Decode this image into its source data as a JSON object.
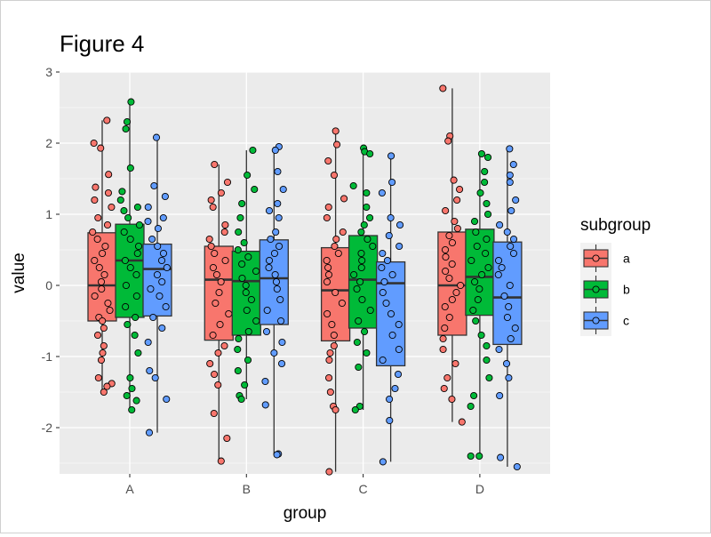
{
  "chart_data": {
    "type": "boxplot",
    "title": "Figure 4",
    "xlabel": "group",
    "ylabel": "value",
    "categories": [
      "A",
      "B",
      "C",
      "D"
    ],
    "ylim": [
      -2.65,
      3.0
    ],
    "yticks": [
      -2,
      -1,
      0,
      1,
      2,
      3
    ],
    "grid": true,
    "legend": {
      "title": "subgroup",
      "position": "right"
    },
    "series": [
      {
        "name": "a",
        "color": "#F8766D"
      },
      {
        "name": "b",
        "color": "#00BA38"
      },
      {
        "name": "c",
        "color": "#619CFF"
      }
    ],
    "boxes": [
      {
        "group": "A",
        "subgroup": "a",
        "min": -1.5,
        "q1": -0.5,
        "median": 0.0,
        "q3": 0.74,
        "max": 2.32,
        "points": [
          2.32,
          2.0,
          1.93,
          1.56,
          1.38,
          1.3,
          1.2,
          1.1,
          0.95,
          0.85,
          0.75,
          0.65,
          0.55,
          0.45,
          0.35,
          0.25,
          0.15,
          0.05,
          -0.05,
          -0.15,
          -0.25,
          -0.35,
          -0.45,
          -0.5,
          -0.6,
          -0.7,
          -0.85,
          -0.95,
          -1.05,
          -1.3,
          -1.38,
          -1.42,
          -1.5
        ]
      },
      {
        "group": "A",
        "subgroup": "b",
        "min": -1.75,
        "q1": -0.45,
        "median": 0.35,
        "q3": 0.86,
        "max": 2.58,
        "points": [
          2.58,
          2.3,
          2.2,
          1.65,
          1.32,
          1.2,
          1.1,
          1.05,
          0.95,
          0.85,
          0.75,
          0.65,
          0.55,
          0.45,
          0.35,
          0.25,
          0.15,
          0.0,
          -0.15,
          -0.3,
          -0.45,
          -0.55,
          -0.7,
          -0.95,
          -1.3,
          -1.45,
          -1.55,
          -1.62,
          -1.75
        ]
      },
      {
        "group": "A",
        "subgroup": "c",
        "min": -2.07,
        "q1": -0.43,
        "median": 0.23,
        "q3": 0.58,
        "max": 2.08,
        "points": [
          2.08,
          1.4,
          1.25,
          1.1,
          0.95,
          0.9,
          0.8,
          0.65,
          0.55,
          0.45,
          0.35,
          0.25,
          0.15,
          0.05,
          -0.05,
          -0.15,
          -0.3,
          -0.45,
          -0.6,
          -0.8,
          -1.2,
          -1.3,
          -1.6,
          -2.07
        ]
      },
      {
        "group": "B",
        "subgroup": "a",
        "min": -2.47,
        "q1": -0.77,
        "median": 0.08,
        "q3": 0.55,
        "max": 1.7,
        "points": [
          1.7,
          1.45,
          1.3,
          1.2,
          1.1,
          0.85,
          0.75,
          0.65,
          0.55,
          0.45,
          0.35,
          0.25,
          0.15,
          0.05,
          -0.1,
          -0.25,
          -0.4,
          -0.55,
          -0.7,
          -0.85,
          -0.95,
          -1.1,
          -1.25,
          -1.4,
          -1.8,
          -2.15,
          -2.47
        ]
      },
      {
        "group": "B",
        "subgroup": "b",
        "min": -1.6,
        "q1": -0.7,
        "median": 0.06,
        "q3": 0.48,
        "max": 1.9,
        "points": [
          1.9,
          1.55,
          1.35,
          1.15,
          0.95,
          0.75,
          0.6,
          0.5,
          0.4,
          0.3,
          0.2,
          0.1,
          0.0,
          -0.1,
          -0.2,
          -0.35,
          -0.5,
          -0.65,
          -0.75,
          -0.9,
          -1.05,
          -1.2,
          -1.4,
          -1.55,
          -1.6
        ]
      },
      {
        "group": "B",
        "subgroup": "c",
        "min": -2.38,
        "q1": -0.55,
        "median": 0.1,
        "q3": 0.64,
        "max": 1.95,
        "points": [
          1.95,
          1.9,
          1.6,
          1.35,
          1.15,
          1.05,
          0.95,
          0.75,
          0.65,
          0.55,
          0.45,
          0.35,
          0.25,
          0.15,
          0.05,
          -0.05,
          -0.2,
          -0.35,
          -0.5,
          -0.65,
          -0.8,
          -0.95,
          -1.1,
          -1.35,
          -1.68,
          -2.37,
          -2.38
        ]
      },
      {
        "group": "C",
        "subgroup": "a",
        "min": -2.62,
        "q1": -0.78,
        "median": -0.07,
        "q3": 0.53,
        "max": 2.17,
        "points": [
          2.17,
          1.98,
          1.75,
          1.55,
          1.22,
          1.1,
          0.95,
          0.75,
          0.65,
          0.55,
          0.45,
          0.35,
          0.25,
          0.15,
          0.05,
          -0.1,
          -0.25,
          -0.4,
          -0.55,
          -0.7,
          -0.85,
          -0.95,
          -1.05,
          -1.3,
          -1.5,
          -1.7,
          -1.75,
          -2.62
        ]
      },
      {
        "group": "C",
        "subgroup": "b",
        "min": -1.75,
        "q1": -0.6,
        "median": 0.08,
        "q3": 0.7,
        "max": 1.93,
        "points": [
          1.93,
          1.88,
          1.85,
          1.4,
          1.3,
          1.1,
          0.95,
          0.85,
          0.75,
          0.65,
          0.55,
          0.45,
          0.35,
          0.25,
          0.15,
          0.05,
          -0.05,
          -0.2,
          -0.35,
          -0.5,
          -0.65,
          -0.8,
          -0.95,
          -1.15,
          -1.7,
          -1.75
        ]
      },
      {
        "group": "C",
        "subgroup": "c",
        "min": -2.48,
        "q1": -1.13,
        "median": 0.03,
        "q3": 0.33,
        "max": 1.82,
        "points": [
          1.82,
          1.45,
          1.3,
          0.95,
          0.85,
          0.7,
          0.55,
          0.45,
          0.35,
          0.25,
          0.15,
          0.05,
          -0.1,
          -0.25,
          -0.4,
          -0.55,
          -0.7,
          -0.9,
          -1.05,
          -1.25,
          -1.45,
          -1.6,
          -1.9,
          -2.48
        ]
      },
      {
        "group": "D",
        "subgroup": "a",
        "min": -1.92,
        "q1": -0.7,
        "median": 0.0,
        "q3": 0.75,
        "max": 2.77,
        "points": [
          2.77,
          2.1,
          2.03,
          1.48,
          1.35,
          1.2,
          1.05,
          0.9,
          0.8,
          0.7,
          0.6,
          0.5,
          0.4,
          0.3,
          0.2,
          0.1,
          0.0,
          -0.1,
          -0.2,
          -0.3,
          -0.45,
          -0.6,
          -0.75,
          -0.9,
          -1.1,
          -1.3,
          -1.45,
          -1.6,
          -1.92
        ]
      },
      {
        "group": "D",
        "subgroup": "b",
        "min": -2.4,
        "q1": -0.42,
        "median": 0.12,
        "q3": 0.79,
        "max": 1.85,
        "points": [
          1.85,
          1.8,
          1.6,
          1.45,
          1.3,
          1.15,
          1.0,
          0.9,
          0.75,
          0.65,
          0.55,
          0.45,
          0.35,
          0.25,
          0.15,
          0.05,
          -0.05,
          -0.2,
          -0.35,
          -0.5,
          -0.7,
          -0.85,
          -1.05,
          -1.3,
          -1.55,
          -1.7,
          -2.4,
          -2.4
        ]
      },
      {
        "group": "D",
        "subgroup": "c",
        "min": -2.55,
        "q1": -0.83,
        "median": -0.17,
        "q3": 0.61,
        "max": 1.92,
        "points": [
          1.92,
          1.7,
          1.55,
          1.45,
          1.2,
          1.05,
          0.85,
          0.75,
          0.65,
          0.55,
          0.45,
          0.35,
          0.25,
          0.15,
          0.0,
          -0.15,
          -0.3,
          -0.45,
          -0.6,
          -0.75,
          -0.9,
          -1.1,
          -1.3,
          -1.55,
          -2.42,
          -2.55
        ]
      }
    ]
  }
}
